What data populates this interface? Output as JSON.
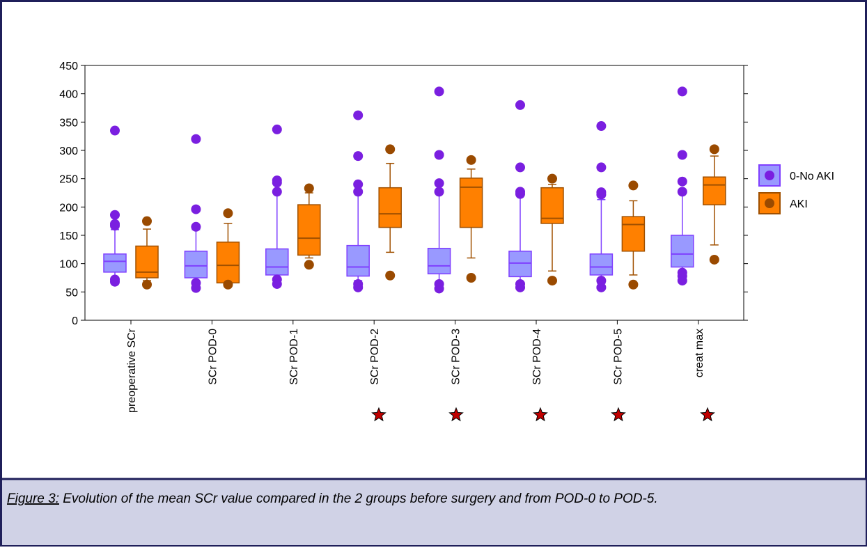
{
  "chart_data": {
    "type": "box",
    "categories": [
      "preoperative SCr",
      "SCr POD-0",
      "SCr POD-1",
      "SCr POD-2",
      "SCr POD-3",
      "SCr POD-4",
      "SCr POD-5",
      "creat max"
    ],
    "ylim": [
      0,
      450
    ],
    "yticks": [
      0,
      50,
      100,
      150,
      200,
      250,
      300,
      350,
      400,
      450
    ],
    "series": [
      {
        "name": "0-No AKI",
        "color": "#9999ff",
        "edge": "#7f3fff",
        "outlier_color": "#7a1fe0",
        "boxes": [
          {
            "low": 75,
            "q1": 85,
            "median": 104,
            "q3": 117,
            "high": 160,
            "outliers": [
              335,
              186,
              170,
              167,
              72,
              68
            ]
          },
          {
            "low": 65,
            "q1": 75,
            "median": 96,
            "q3": 122,
            "high": 160,
            "outliers": [
              320,
              196,
              165,
              66,
              57
            ]
          },
          {
            "low": 70,
            "q1": 80,
            "median": 94,
            "q3": 126,
            "high": 225,
            "outliers": [
              337,
              247,
              243,
              227,
              72,
              64
            ]
          },
          {
            "low": 70,
            "q1": 78,
            "median": 94,
            "q3": 132,
            "high": 225,
            "outliers": [
              362,
              290,
              240,
              227,
              64,
              58
            ]
          },
          {
            "low": 65,
            "q1": 82,
            "median": 96,
            "q3": 127,
            "high": 225,
            "outliers": [
              404,
              292,
              242,
              227,
              64,
              56
            ]
          },
          {
            "low": 65,
            "q1": 77,
            "median": 101,
            "q3": 122,
            "high": 220,
            "outliers": [
              380,
              270,
              227,
              223,
              64,
              58
            ]
          },
          {
            "low": 65,
            "q1": 80,
            "median": 94,
            "q3": 117,
            "high": 213,
            "outliers": [
              343,
              270,
              226,
              222,
              70,
              58
            ]
          },
          {
            "low": 85,
            "q1": 94,
            "median": 117,
            "q3": 150,
            "high": 225,
            "outliers": [
              404,
              292,
              245,
              227,
              84,
              78,
              70
            ]
          }
        ]
      },
      {
        "name": "AKI",
        "color": "#ff8000",
        "edge": "#a05000",
        "outlier_color": "#9a4a00",
        "boxes": [
          {
            "low": 70,
            "q1": 75,
            "median": 85,
            "q3": 131,
            "high": 161,
            "outliers": [
              175,
              63
            ]
          },
          {
            "low": 65,
            "q1": 66,
            "median": 97,
            "q3": 138,
            "high": 171,
            "outliers": [
              189,
              63
            ]
          },
          {
            "low": 110,
            "q1": 115,
            "median": 145,
            "q3": 204,
            "high": 225,
            "outliers": [
              233,
              98
            ]
          },
          {
            "low": 120,
            "q1": 164,
            "median": 188,
            "q3": 234,
            "high": 277,
            "outliers": [
              302,
              79
            ]
          },
          {
            "low": 110,
            "q1": 164,
            "median": 235,
            "q3": 251,
            "high": 267,
            "outliers": [
              283,
              75
            ]
          },
          {
            "low": 87,
            "q1": 171,
            "median": 180,
            "q3": 234,
            "high": 240,
            "outliers": [
              250,
              70
            ]
          },
          {
            "low": 80,
            "q1": 122,
            "median": 169,
            "q3": 183,
            "high": 211,
            "outliers": [
              238,
              63
            ]
          },
          {
            "low": 133,
            "q1": 204,
            "median": 239,
            "q3": 253,
            "high": 290,
            "outliers": [
              302,
              107
            ]
          }
        ]
      }
    ]
  },
  "caption": {
    "label": "Figure 3:",
    "text": " Evolution of the mean SCr value compared in the 2 groups before surgery and from POD-0 to POD-5."
  }
}
